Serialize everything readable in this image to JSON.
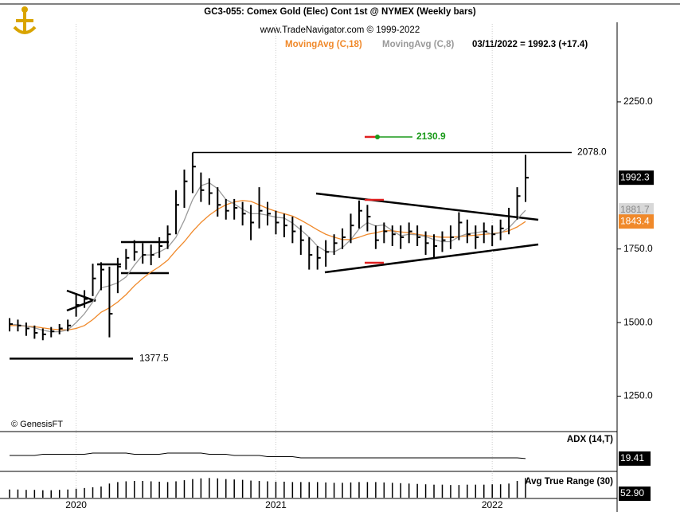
{
  "chart_data": {
    "type": "ohlc",
    "title": "GC3-055:  Comex Gold (Elec) Cont 1st @ NYMEX  (Weekly bars)",
    "subtitle": "www.TradeNavigator.com © 1999-2022",
    "readout": "03/11/2022 = 1992.3 (+17.4)",
    "watermark": "© GenesisFT",
    "categories": [
      null,
      null,
      null,
      null,
      null,
      null,
      null,
      null,
      "2020",
      null,
      null,
      null,
      null,
      null,
      null,
      null,
      null,
      null,
      null,
      null,
      null,
      null,
      null,
      null,
      null,
      null,
      null,
      null,
      null,
      null,
      null,
      null,
      "2021",
      null,
      null,
      null,
      null,
      null,
      null,
      null,
      null,
      null,
      null,
      null,
      null,
      null,
      null,
      null,
      null,
      null,
      null,
      null,
      null,
      null,
      null,
      null,
      null,
      null,
      "2022",
      null,
      null,
      null,
      null
    ],
    "close": [
      1495,
      1490,
      1480,
      1465,
      1460,
      1470,
      1480,
      1490,
      1560,
      1580,
      1650,
      1680,
      1530,
      1690,
      1720,
      1740,
      1730,
      1730,
      1760,
      1800,
      1900,
      1980,
      2030,
      1950,
      1940,
      1900,
      1880,
      1890,
      1870,
      1840,
      1880,
      1870,
      1840,
      1830,
      1810,
      1780,
      1730,
      1720,
      1740,
      1770,
      1790,
      1830,
      1880,
      1860,
      1780,
      1810,
      1800,
      1790,
      1810,
      1790,
      1770,
      1760,
      1780,
      1790,
      1840,
      1800,
      1790,
      1810,
      1800,
      1820,
      1860,
      1930,
      1992.3
    ],
    "high": [
      1515,
      1510,
      1500,
      1490,
      1480,
      1485,
      1495,
      1510,
      1600,
      1610,
      1700,
      1705,
      1690,
      1720,
      1750,
      1780,
      1770,
      1765,
      1790,
      1830,
      1950,
      2020,
      2078,
      2010,
      1990,
      1960,
      1920,
      1920,
      1910,
      1900,
      1960,
      1910,
      1880,
      1870,
      1860,
      1830,
      1790,
      1760,
      1780,
      1800,
      1820,
      1870,
      1915,
      1900,
      1830,
      1840,
      1830,
      1830,
      1840,
      1830,
      1810,
      1800,
      1810,
      1830,
      1875,
      1850,
      1830,
      1840,
      1830,
      1850,
      1890,
      1960,
      2070
    ],
    "low": [
      1470,
      1470,
      1455,
      1445,
      1440,
      1450,
      1460,
      1470,
      1520,
      1550,
      1590,
      1610,
      1450,
      1600,
      1680,
      1710,
      1700,
      1695,
      1720,
      1750,
      1800,
      1890,
      1940,
      1910,
      1900,
      1860,
      1850,
      1850,
      1830,
      1780,
      1820,
      1830,
      1800,
      1790,
      1770,
      1730,
      1680,
      1680,
      1690,
      1730,
      1750,
      1770,
      1820,
      1810,
      1750,
      1770,
      1760,
      1750,
      1770,
      1760,
      1730,
      1720,
      1740,
      1750,
      1780,
      1770,
      1750,
      1770,
      1760,
      1780,
      1800,
      1850,
      1910
    ],
    "series": [
      {
        "name": "MovingAvg (C,18)",
        "color": "#f0892a",
        "values": [
          1490,
          1490,
          1488,
          1486,
          1482,
          1478,
          1476,
          1475,
          1480,
          1490,
          1510,
          1535,
          1550,
          1570,
          1595,
          1625,
          1650,
          1672,
          1690,
          1712,
          1745,
          1775,
          1810,
          1840,
          1865,
          1885,
          1900,
          1910,
          1915,
          1912,
          1900,
          1888,
          1878,
          1870,
          1862,
          1848,
          1832,
          1815,
          1800,
          1790,
          1782,
          1782,
          1790,
          1800,
          1805,
          1812,
          1812,
          1808,
          1805,
          1800,
          1796,
          1792,
          1790,
          1790,
          1792,
          1795,
          1797,
          1800,
          1802,
          1806,
          1812,
          1825,
          1843.4
        ]
      },
      {
        "name": "MovingAvg (C,8)",
        "color": "#9a9a9a",
        "values": [
          1495,
          1492,
          1488,
          1482,
          1474,
          1469,
          1469,
          1475,
          1500,
          1530,
          1570,
          1618,
          1625,
          1635,
          1655,
          1695,
          1730,
          1730,
          1740,
          1755,
          1790,
          1848,
          1918,
          1965,
          1975,
          1955,
          1918,
          1903,
          1885,
          1870,
          1870,
          1865,
          1858,
          1855,
          1838,
          1815,
          1790,
          1760,
          1742,
          1740,
          1755,
          1782,
          1818,
          1840,
          1828,
          1832,
          1812,
          1795,
          1800,
          1798,
          1792,
          1782,
          1775,
          1775,
          1792,
          1802,
          1805,
          1810,
          1800,
          1805,
          1822,
          1852,
          1881.7
        ]
      }
    ],
    "ylim": [
      1135,
      2515
    ],
    "yticks": [
      {
        "value": 1250,
        "label": "1250.0"
      },
      {
        "value": 1500,
        "label": "1500.0"
      },
      {
        "value": 1750,
        "label": "1750.0"
      },
      {
        "value": 2250,
        "label": "2250.0"
      }
    ],
    "annotations": [
      {
        "value": 2078,
        "label": "2078.0"
      },
      {
        "value": 1377.5,
        "label": "1377.5"
      },
      {
        "value": 2130.9,
        "label": "2130.9"
      }
    ],
    "indicators": [
      {
        "name": "ADX (14,T)",
        "color": "#000000",
        "ylim": [
          10,
          40
        ],
        "reading": 19.41,
        "values": [
          22,
          22,
          22,
          22,
          23,
          23,
          23,
          23,
          23,
          23,
          24,
          24,
          24,
          24,
          24,
          23,
          23,
          23,
          23,
          24,
          24,
          24,
          24,
          24,
          23,
          23,
          23,
          22,
          22,
          22,
          22,
          21,
          21,
          21,
          21,
          20,
          20,
          20,
          20,
          20,
          20,
          20,
          20,
          20,
          20,
          20,
          20,
          20,
          20,
          20,
          20,
          20,
          20,
          20,
          20,
          20,
          20,
          20,
          20,
          20,
          20,
          20,
          19.41
        ]
      },
      {
        "name": "Avg True Range (30)",
        "color": "#000000",
        "ylim": [
          0,
          60
        ],
        "reading": {
          "value": 52.9,
          "label": "52.90"
        },
        "values": [
          22,
          22,
          21,
          21,
          20,
          20,
          21,
          22,
          24,
          26,
          28,
          30,
          38,
          42,
          44,
          45,
          45,
          44,
          43,
          42,
          44,
          47,
          50,
          52,
          53,
          52,
          50,
          49,
          48,
          46,
          45,
          44,
          43,
          43,
          42,
          42,
          42,
          42,
          41,
          40,
          40,
          41,
          42,
          42,
          42,
          41,
          40,
          39,
          38,
          37,
          36,
          35,
          35,
          34,
          34,
          35,
          35,
          35,
          36,
          36,
          38,
          45,
          52.9
        ]
      }
    ]
  }
}
